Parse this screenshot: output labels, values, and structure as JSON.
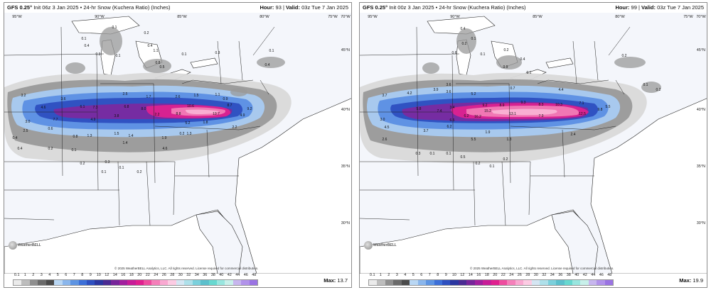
{
  "panels": [
    {
      "title_bold": "GFS 0.25°",
      "title_rest": "Init 06z 3 Jan 2025 • 24-hr Snow (Kuchera Ratio) (Inches)",
      "hour_label": "Hour:",
      "hour_value": "93",
      "valid_label": "Valid:",
      "valid_value": "03z Tue 7 Jan 2025",
      "max_label": "Max:",
      "max_value": "13.7",
      "copyright": "© 2025 WeatherBELL Analytics, LLC. All rights reserved. License required for commercial distribution.",
      "logo_text": "WeatherBELL",
      "lon_labels": [
        "95°W",
        "90°W",
        "85°W",
        "80°W",
        "75°W",
        "70°W"
      ],
      "lat_labels": [
        "45°N",
        "40°N",
        "35°N",
        "30°N"
      ],
      "labels": [
        "0.1",
        "0.4",
        "0.1",
        "0.3",
        "0.1",
        "0.2",
        "0.4",
        "1.1",
        "0.8",
        "0.5",
        "0.1",
        "0.3",
        "0.1",
        "0.4",
        "3.2",
        "3.6",
        "2.5",
        "1.7",
        "2.6",
        "1.5",
        "1.1",
        "0.9",
        "4.6",
        "6.1",
        "7.3",
        "6.8",
        "8.0",
        "10.6",
        "8.7",
        "9.2",
        "4.9",
        "3.0",
        "7.7",
        "4.9",
        "3.8",
        "2.2",
        "8.8",
        "5.2",
        "1.8",
        "13.7",
        "2.2",
        "1.4",
        "2.5",
        "0.6",
        "1.3",
        "0.8",
        "1.4",
        "1.5",
        "1.9",
        "1.3",
        "4.6",
        "0.4",
        "0.2",
        "0.1",
        "0.2",
        "0.3",
        "0.1",
        "0.2",
        "0.1",
        "0.2",
        "0.4"
      ]
    },
    {
      "title_bold": "GFS 0.25°",
      "title_rest": "Init 00z 3 Jan 2025 • 24-hr Snow (Kuchera Ratio) (Inches)",
      "hour_label": "Hour:",
      "hour_value": "99",
      "valid_label": "Valid:",
      "valid_value": "03z Tue 7 Jan 2025",
      "max_label": "Max:",
      "max_value": "19.9",
      "copyright": "© 2025 WeatherBELL Analytics, LLC. All rights reserved. License required for commercial distribution.",
      "logo_text": "WeatherBELL",
      "lon_labels": [
        "95°W",
        "90°W",
        "85°W",
        "80°W",
        "75°W",
        "70°W"
      ],
      "lat_labels": [
        "45°N",
        "40°N",
        "35°N",
        "30°N"
      ],
      "labels": [
        "0.4",
        "0.1",
        "0.2",
        "0.6",
        "0.1",
        "0.2",
        "0.4",
        "0.9",
        "0.1",
        "0.2",
        "0.1",
        "0.2",
        "3.7",
        "4.2",
        "3.9",
        "3.6",
        "5.2",
        "3.4",
        "4.4",
        "0.7",
        "3.6",
        "5.8",
        "7.4",
        "6.2",
        "9.2",
        "15.2",
        "8.9",
        "9.3",
        "8.3",
        "10.3",
        "7.1",
        "5.5",
        "3.0",
        "6.5",
        "16.2",
        "13.1",
        "7.3",
        "12.5",
        "9.8",
        "4.5",
        "6.2",
        "1.9",
        "1.3",
        "5.5",
        "2.4",
        "2.6",
        "3.7",
        "0.3",
        "0.1",
        "0.5",
        "0.2",
        "0.1",
        "0.2",
        "0.1"
      ]
    }
  ],
  "colorbar": {
    "ticks": [
      "0.1",
      "1",
      "2",
      "3",
      "4",
      "5",
      "6",
      "7",
      "8",
      "9",
      "10",
      "12",
      "14",
      "16",
      "18",
      "20",
      "22",
      "24",
      "26",
      "28",
      "30",
      "32",
      "34",
      "36",
      "38",
      "40",
      "42",
      "44",
      "46",
      "48"
    ],
    "colors": [
      "#ebebeb",
      "#bdbdbd",
      "#8f8f8f",
      "#6a6a6a",
      "#4a4a4a",
      "#b9d7f4",
      "#8ab6ec",
      "#5d94e3",
      "#3c6fd8",
      "#2d4fc0",
      "#2a36a0",
      "#4a2a92",
      "#77249a",
      "#a21f9e",
      "#c81c98",
      "#e01f8f",
      "#ee4c9f",
      "#f57fba",
      "#f9a8d1",
      "#fccbe3",
      "#d5e6f3",
      "#aee0ea",
      "#7bd0dc",
      "#5bbfcc",
      "#67d8d0",
      "#98e6df",
      "#c8f0ea",
      "#c7b6ee",
      "#b192ea",
      "#9a73e3"
    ]
  },
  "colors": {
    "land": "#f4f6fb",
    "lake": "#ffffff",
    "border": "#222222",
    "gray_light": "#d9d9d9",
    "gray_mid": "#9a9a9a",
    "gray_dark": "#5c5c5c",
    "blue_light": "#a9cbf2",
    "blue_mid": "#5b8fe3",
    "blue_dark": "#2d4fc0",
    "purple": "#7a2aa0",
    "magenta": "#dd2290",
    "pink": "#f27cb6",
    "pink_light": "#f9b2d4"
  }
}
